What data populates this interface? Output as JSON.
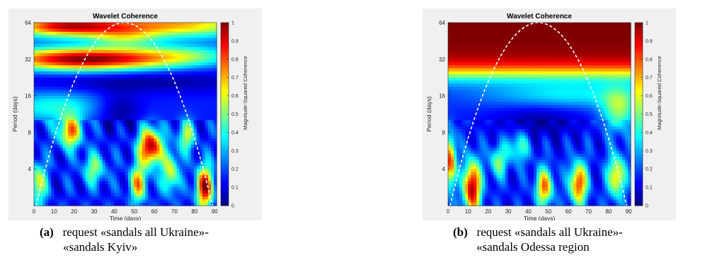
{
  "chart_data": [
    {
      "type": "heatmap",
      "title": "Wavelet Coherence",
      "xlabel": "Time (days)",
      "ylabel": "Period (days)",
      "colorbar_label": "Magnitude-Squared Coherence",
      "colormap": "jet",
      "x_ticks": [
        "0",
        "10",
        "20",
        "30",
        "40",
        "50",
        "60",
        "70",
        "80",
        "90"
      ],
      "y_ticks": [
        "64",
        "32",
        "16",
        "8",
        "4"
      ],
      "colorbar_ticks": [
        "1",
        "0.9",
        "0.8",
        "0.7",
        "0.6",
        "0.5",
        "0.4",
        "0.3",
        "0.2",
        "0.1",
        "0"
      ],
      "xlim": [
        0,
        91
      ],
      "ylim_period_log2": [
        1,
        6
      ],
      "clim": [
        0,
        1
      ],
      "cone_of_influence": "white dashed",
      "description_of_field": "high coherence (red) at periods ~28-40 days across all time; low coherence (blue) band at 16-24 days; mixed patches with red blobs near t=58 period 5-7 and t=85 period 2-3"
    },
    {
      "type": "heatmap",
      "title": "Wavelet Coherence",
      "xlabel": "Time (days)",
      "ylabel": "Period (days)",
      "colorbar_label": "Magnitude-Squared Coherence",
      "colormap": "jet",
      "x_ticks": [
        "0",
        "10",
        "20",
        "30",
        "40",
        "50",
        "60",
        "70",
        "80",
        "90"
      ],
      "y_ticks": [
        "64",
        "32",
        "16",
        "8",
        "4"
      ],
      "colorbar_ticks": [
        "1",
        "0.9",
        "0.8",
        "0.7",
        "0.6",
        "0.5",
        "0.4",
        "0.3",
        "0.2",
        "0.1",
        "0"
      ],
      "xlim": [
        0,
        91
      ],
      "ylim_period_log2": [
        1,
        6
      ],
      "clim": [
        0,
        1
      ],
      "cone_of_influence": "white dashed",
      "description_of_field": "very high coherence (dark red) at periods above ~20 days; medium coherence band around 12-16 days; mostly low coherence below 8 days with scattered red streaks"
    }
  ],
  "captions": [
    {
      "tag": "(a)",
      "line1": "request «sandals all Ukraine»-",
      "line2": "«sandals Kyiv»"
    },
    {
      "tag": "(b)",
      "line1": "request «sandals all Ukraine»-",
      "line2": "«sandals Odessa region"
    }
  ]
}
